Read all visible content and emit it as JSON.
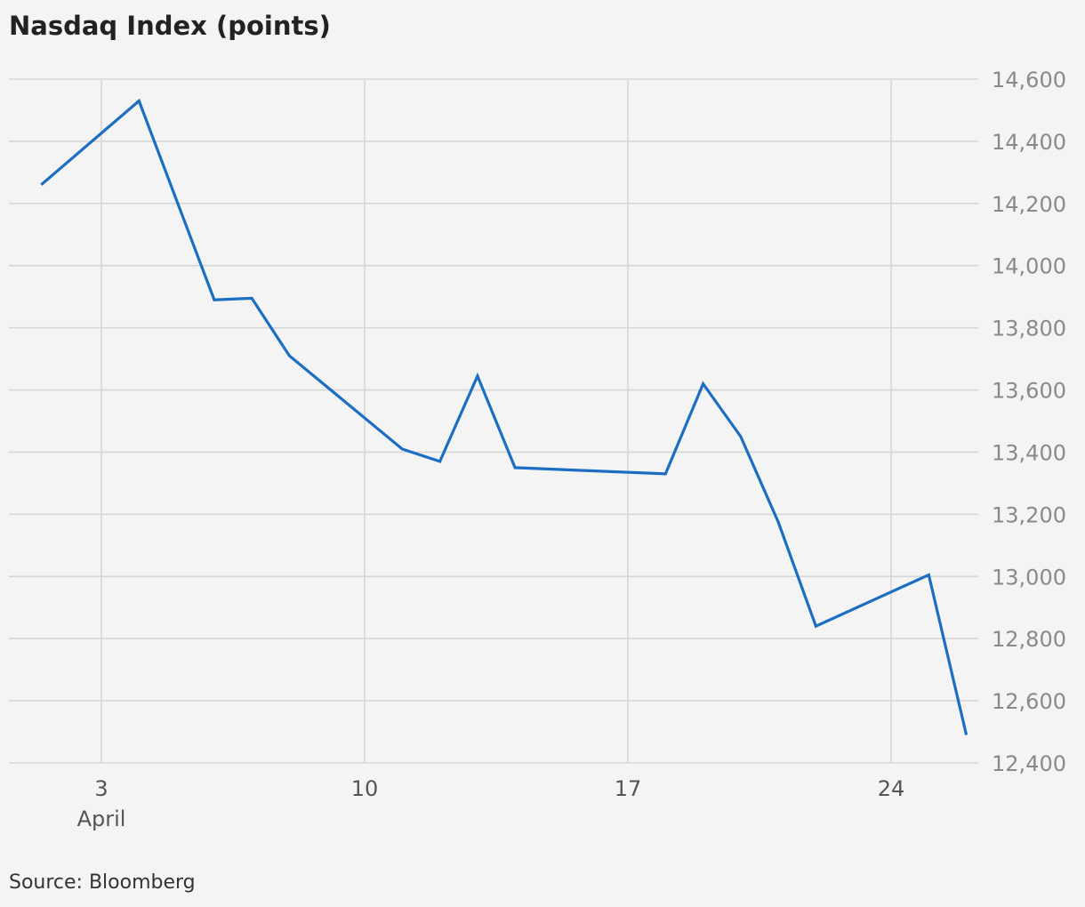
{
  "title": "Nasdaq Index (points)",
  "source": "Source: Bloomberg",
  "colors": {
    "line": "#1b6ec2",
    "grid": "#d6d6d6",
    "background": "#f4f4f4"
  },
  "chart_data": {
    "type": "line",
    "title": "Nasdaq Index (points)",
    "xlabel": "",
    "ylabel": "",
    "x_tick_labels": [
      {
        "day": 3,
        "label": "3",
        "sublabel": "April"
      },
      {
        "day": 10,
        "label": "10",
        "sublabel": ""
      },
      {
        "day": 17,
        "label": "17",
        "sublabel": ""
      },
      {
        "day": 24,
        "label": "24",
        "sublabel": ""
      }
    ],
    "y_ticks": [
      12400,
      12600,
      12800,
      13000,
      13200,
      13400,
      13600,
      13800,
      14000,
      14200,
      14400,
      14600
    ],
    "y_tick_labels": [
      "12,400",
      "12,600",
      "12,800",
      "13,000",
      "13,200",
      "13,400",
      "13,600",
      "13,800",
      "14,000",
      "14,200",
      "14,400",
      "14,600"
    ],
    "ylim": [
      12400,
      14600
    ],
    "xlim": [
      1,
      26.5
    ],
    "x_unit": "day of April",
    "grid": true,
    "series": [
      {
        "x": [
          1.4,
          4.0,
          6.0,
          7.0,
          8.0,
          11.0,
          12.0,
          13.0,
          14.0,
          18.0,
          19.0,
          20.0,
          21.0,
          22.0,
          25.0,
          26.0
        ],
        "values": [
          14260,
          14530,
          13890,
          13895,
          13710,
          13410,
          13370,
          13645,
          13350,
          13330,
          13620,
          13450,
          13175,
          12840,
          13005,
          12490
        ]
      }
    ]
  }
}
